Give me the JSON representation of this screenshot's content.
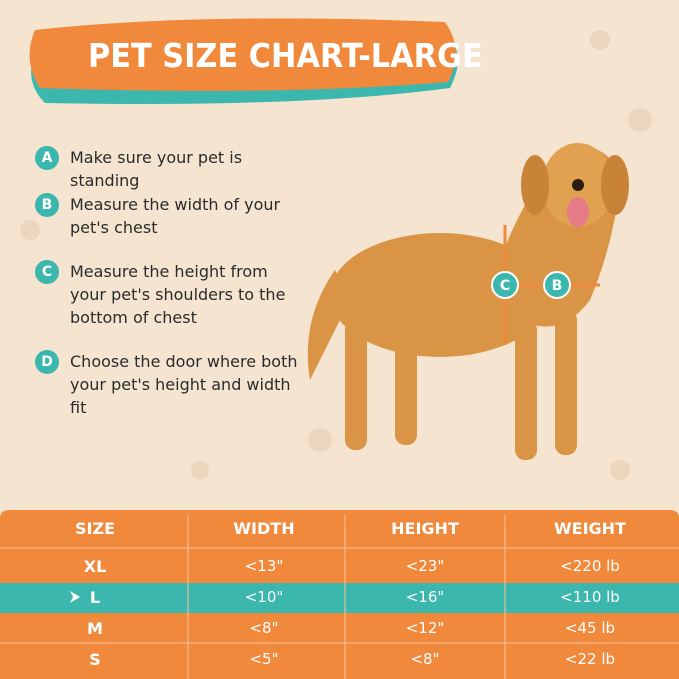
{
  "title": "PET SIZE CHART-LARGE",
  "steps": [
    {
      "letter": "A",
      "text": "Make sure your pet is standing"
    },
    {
      "letter": "B",
      "text": "Measure the width of your pet's chest"
    },
    {
      "letter": "C",
      "text": "Measure the height from your pet's shoulders to the bottom of chest"
    },
    {
      "letter": "D",
      "text": "Choose the door where both your pet's height and width fit"
    }
  ],
  "dog_labels": {
    "height": "C",
    "width": "B"
  },
  "table": {
    "header": [
      "SIZE",
      "WIDTH",
      "HEIGHT",
      "WEIGHT"
    ],
    "rows": [
      [
        "XL",
        "<13\"",
        "<23\"",
        "<220 lb"
      ],
      [
        "L",
        "<10\"",
        "<16\"",
        "<110 lb"
      ],
      [
        "M",
        "<8\"",
        "<12\"",
        "<45 lb"
      ],
      [
        "S",
        "<5\"",
        "<8\"",
        "<22 lb"
      ]
    ]
  }
}
